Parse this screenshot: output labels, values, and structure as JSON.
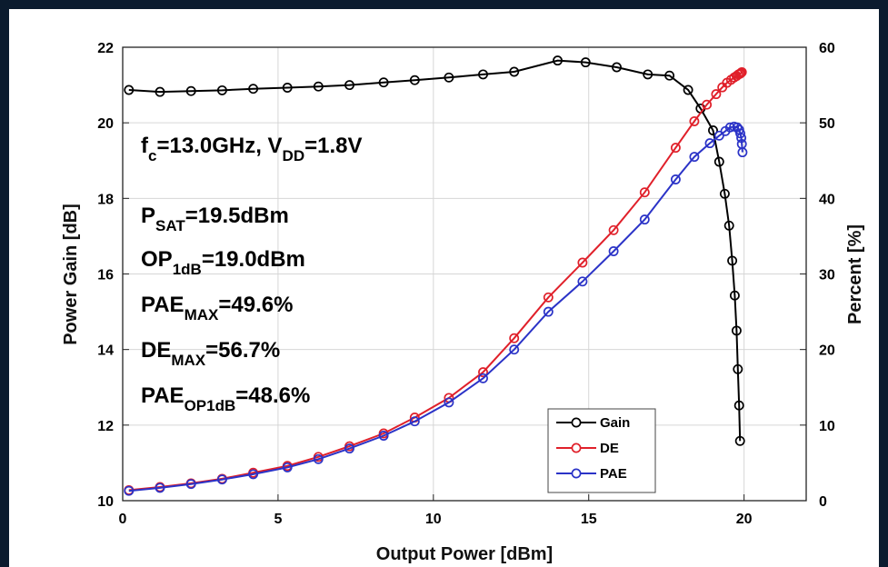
{
  "chart_data": {
    "type": "line",
    "xlabel": "Output Power [dBm]",
    "ylabel_left": "Power Gain [dB]",
    "ylabel_right": "Percent [%]",
    "xlim": [
      0,
      22
    ],
    "ylim_left": [
      10,
      22
    ],
    "ylim_right": [
      0,
      60
    ],
    "x_ticks": [
      "0",
      "5",
      "10",
      "15",
      "20"
    ],
    "y_left_ticks": [
      "10",
      "12",
      "14",
      "16",
      "18",
      "20",
      "22"
    ],
    "y_right_ticks": [
      "0",
      "10",
      "20",
      "30",
      "40",
      "50",
      "60"
    ],
    "grid": true,
    "legend_position": "bottom-right",
    "annotations": [
      {
        "main": "f",
        "sub": "c",
        "rest": "=13.0GHz, V",
        "sub2": "DD",
        "rest2": "=1.8V"
      },
      {
        "main": "P",
        "sub": "SAT",
        "rest": "=19.5dBm"
      },
      {
        "main": "OP",
        "sub": "1dB",
        "rest": "=19.0dBm"
      },
      {
        "main": "PAE",
        "sub": "MAX",
        "rest": "=49.6%"
      },
      {
        "main": "DE",
        "sub": "MAX",
        "rest": "=56.7%"
      },
      {
        "main": "PAE",
        "sub": "OP1dB",
        "rest": "=48.6%"
      }
    ],
    "series": [
      {
        "name": "Gain",
        "axis": "left",
        "color": "#000000",
        "x": [
          0.2,
          1.2,
          2.2,
          3.2,
          4.2,
          5.3,
          6.3,
          7.3,
          8.4,
          9.4,
          10.5,
          11.6,
          12.6,
          14.0,
          14.9,
          15.9,
          16.9,
          17.6,
          18.2,
          18.6,
          19.0,
          19.2,
          19.38,
          19.52,
          19.62,
          19.7,
          19.76,
          19.8,
          19.84,
          19.87
        ],
        "y": [
          20.87,
          20.82,
          20.84,
          20.86,
          20.9,
          20.93,
          20.96,
          21.0,
          21.07,
          21.13,
          21.2,
          21.28,
          21.35,
          21.65,
          21.6,
          21.47,
          21.28,
          21.25,
          20.87,
          20.38,
          19.8,
          18.97,
          18.12,
          17.28,
          16.35,
          15.43,
          14.5,
          13.48,
          12.52,
          11.58
        ]
      },
      {
        "name": "DE",
        "axis": "right",
        "color": "#e0202a",
        "x": [
          0.2,
          1.2,
          2.2,
          3.2,
          4.2,
          5.3,
          6.3,
          7.3,
          8.4,
          9.4,
          10.5,
          11.6,
          12.6,
          13.7,
          14.8,
          15.8,
          16.8,
          17.8,
          18.4,
          18.8,
          19.1,
          19.3,
          19.45,
          19.58,
          19.68,
          19.76,
          19.82,
          19.87,
          19.9,
          19.93
        ],
        "y": [
          1.4,
          1.8,
          2.3,
          2.9,
          3.7,
          4.6,
          5.8,
          7.2,
          8.9,
          11.0,
          13.6,
          17.0,
          21.5,
          26.9,
          31.5,
          35.8,
          40.8,
          46.7,
          50.2,
          52.4,
          53.8,
          54.7,
          55.3,
          55.7,
          56.0,
          56.2,
          56.4,
          56.5,
          56.6,
          56.7
        ]
      },
      {
        "name": "PAE",
        "axis": "right",
        "color": "#2b33c7",
        "x": [
          0.2,
          1.2,
          2.2,
          3.2,
          4.2,
          5.3,
          6.3,
          7.3,
          8.4,
          9.4,
          10.5,
          11.6,
          12.6,
          13.7,
          14.8,
          15.8,
          16.8,
          17.8,
          18.4,
          18.9,
          19.2,
          19.4,
          19.55,
          19.68,
          19.78,
          19.84,
          19.88,
          19.91,
          19.93,
          19.95
        ],
        "y": [
          1.3,
          1.7,
          2.2,
          2.8,
          3.5,
          4.4,
          5.5,
          6.9,
          8.6,
          10.5,
          13.0,
          16.2,
          20.0,
          25.0,
          29.0,
          33.0,
          37.2,
          42.5,
          45.5,
          47.3,
          48.3,
          48.9,
          49.4,
          49.5,
          49.4,
          49.1,
          48.6,
          48.0,
          47.2,
          46.1
        ]
      }
    ]
  }
}
